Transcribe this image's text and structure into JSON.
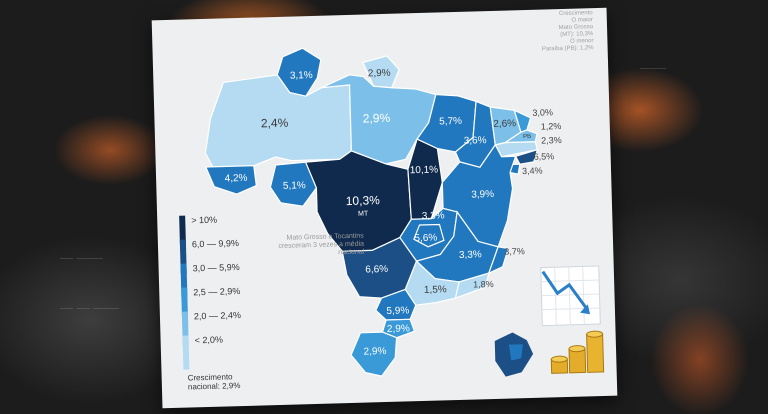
{
  "corner_note": {
    "line1": "Crescimento",
    "line2": "O maior",
    "line3": "Mato Grosso",
    "line4": "(MT): 10,3%",
    "line5": "O menor",
    "line6": "Paraíba (PB): 1,2%"
  },
  "legend": {
    "items": [
      {
        "label": "> 10%",
        "color": "#0f2a4d"
      },
      {
        "label": "6,0 — 9,9%",
        "color": "#1c4f86"
      },
      {
        "label": "3,0 — 5,9%",
        "color": "#2278be"
      },
      {
        "label": "2,5 — 2,9%",
        "color": "#3a9ad8"
      },
      {
        "label": "2,0 — 2,4%",
        "color": "#7cc0ea"
      },
      {
        "label": "< 2,0%",
        "color": "#b5dbf2"
      }
    ]
  },
  "note": "Mato Grosso e Tocantins cresceram 3 vezes a média nacional",
  "national": {
    "line1": "Crescimento",
    "line2": "nacional: 2,9%"
  },
  "states": {
    "rr": "3,1%",
    "ap": "2,9%",
    "am": "2,4%",
    "pa": "2,9%",
    "ac": "4,2%",
    "ro": "5,1%",
    "mt": "10,3%",
    "mt_abbr": "MT",
    "to": "10,1%",
    "ma": "5,7%",
    "pi": "3,6%",
    "ce": "2,6%",
    "ba": "3,9%",
    "go": "3,3%",
    "df": "5,6%",
    "mg": "3,3%",
    "ms": "6,6%",
    "sp": "1,5%",
    "pr": "5,9%",
    "sc": "2,9%",
    "rs": "2,9%",
    "pb_abbr": "PB"
  },
  "external_labels": {
    "rn": "3,0%",
    "pb": "1,2%",
    "pe": "2,3%",
    "al": "6,5%",
    "se": "3,4%",
    "es": "3,7%",
    "rj": "1,8%"
  }
}
